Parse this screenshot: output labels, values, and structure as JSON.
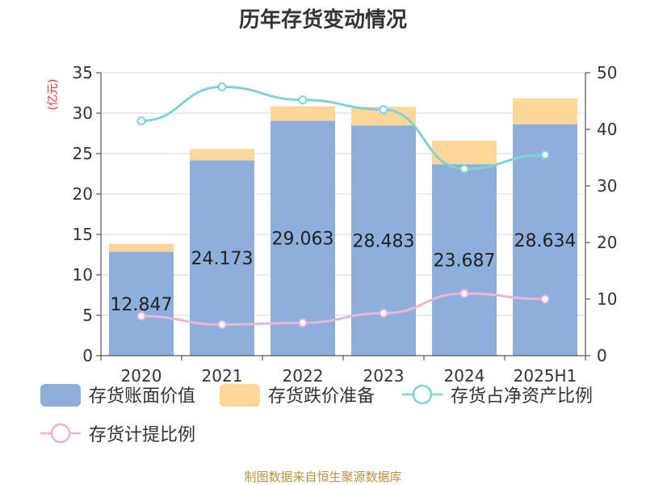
{
  "chart_data": {
    "type": "bar",
    "title": "历年存货变动情况",
    "categories": [
      "2020",
      "2021",
      "2022",
      "2023",
      "2024",
      "2025H1"
    ],
    "y_left": {
      "unit_label": "(亿元)",
      "ylim": [
        0,
        35
      ],
      "ticks": [
        "0",
        "5",
        "10",
        "15",
        "20",
        "25",
        "30",
        "35"
      ]
    },
    "y_right": {
      "ylim": [
        0,
        50
      ],
      "ticks": [
        "0",
        "10",
        "20",
        "30",
        "40",
        "50"
      ]
    },
    "series": [
      {
        "name": "存货账面价值",
        "kind": "bar",
        "stack": "s",
        "axis": "left",
        "color": "#8eaedb",
        "values": [
          12.847,
          24.173,
          29.063,
          28.483,
          23.687,
          28.634
        ],
        "labels": [
          "12.847",
          "24.173",
          "29.063",
          "28.483",
          "23.687",
          "28.634"
        ]
      },
      {
        "name": "存货跌价准备",
        "kind": "bar",
        "stack": "s",
        "axis": "left",
        "color": "#fdd79a",
        "values": [
          1.0,
          1.4,
          1.8,
          2.3,
          2.9,
          3.2
        ]
      },
      {
        "name": "存货占净资产比例",
        "kind": "line",
        "axis": "right",
        "color": "#7fd3d6",
        "values": [
          41.5,
          47.5,
          45.2,
          43.5,
          33.0,
          35.5
        ]
      },
      {
        "name": "存货计提比例",
        "kind": "line",
        "axis": "right",
        "color": "#e8b4d8",
        "values": [
          7.0,
          5.5,
          5.8,
          7.5,
          11.0,
          10.0
        ]
      }
    ],
    "grid": true,
    "legend": "bottom"
  },
  "source": "制图数据来自恒生聚源数据库"
}
